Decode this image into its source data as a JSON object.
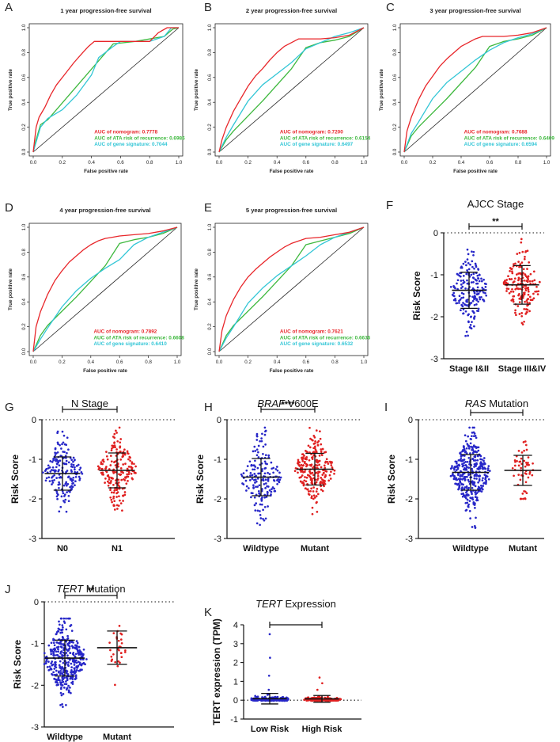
{
  "figure": {
    "colors": {
      "nomogram": "#e8262a",
      "ata": "#3db83d",
      "gene": "#33c6d6",
      "diagonal": "#222222",
      "low_group": "#2727c8",
      "high_group": "#e02020",
      "text": "#222222"
    }
  },
  "chart_data": [
    {
      "panel": "A",
      "type": "line",
      "title": "1 year progression-free survival",
      "xlabel": "False positive rate",
      "ylabel": "True positive rate",
      "xlim": [
        0,
        1
      ],
      "ylim": [
        0,
        1
      ],
      "ticks": [
        "0.0",
        "0.2",
        "0.4",
        "0.6",
        "0.8",
        "1.0"
      ],
      "series": [
        {
          "name": "AUC of nomogram: 0.7778",
          "color_key": "nomogram",
          "x": [
            0,
            0.02,
            0.04,
            0.08,
            0.12,
            0.16,
            0.22,
            0.28,
            0.34,
            0.38,
            0.42,
            0.5,
            0.6,
            0.7,
            0.8,
            0.86,
            0.92,
            1.0
          ],
          "y": [
            0,
            0.2,
            0.28,
            0.36,
            0.46,
            0.54,
            0.63,
            0.72,
            0.8,
            0.85,
            0.89,
            0.89,
            0.89,
            0.89,
            0.89,
            0.96,
            1.0,
            1.0
          ]
        },
        {
          "name": "AUC of ATA risk of recurrence: 0.6986",
          "color_key": "ata",
          "x": [
            0,
            0.02,
            0.05,
            0.1,
            0.55,
            0.7,
            0.9,
            0.96,
            1.0
          ],
          "y": [
            0,
            0.1,
            0.22,
            0.26,
            0.87,
            0.89,
            0.93,
            0.99,
            1.0
          ]
        },
        {
          "name": "AUC of gene signature: 0.7044",
          "color_key": "gene",
          "x": [
            0,
            0.05,
            0.1,
            0.2,
            0.3,
            0.4,
            0.45,
            0.55,
            0.6,
            0.7,
            0.8,
            0.9,
            0.95,
            1.0
          ],
          "y": [
            0,
            0.2,
            0.27,
            0.34,
            0.46,
            0.62,
            0.76,
            0.85,
            0.89,
            0.89,
            0.89,
            0.93,
            1.0,
            1.0
          ]
        }
      ]
    },
    {
      "panel": "B",
      "type": "line",
      "title": "2 year progression-free survival",
      "xlabel": "False positive rate",
      "ylabel": "True positive rate",
      "xlim": [
        0,
        1
      ],
      "ylim": [
        0,
        1
      ],
      "ticks": [
        "0.0",
        "0.2",
        "0.4",
        "0.6",
        "0.8",
        "1.0"
      ],
      "series": [
        {
          "name": "AUC of nomogram: 0.7200",
          "color_key": "nomogram",
          "x": [
            0,
            0.02,
            0.05,
            0.1,
            0.15,
            0.2,
            0.25,
            0.3,
            0.35,
            0.4,
            0.45,
            0.5,
            0.55,
            0.6,
            0.7,
            0.8,
            0.9,
            1.0
          ],
          "y": [
            0,
            0.1,
            0.2,
            0.33,
            0.43,
            0.53,
            0.61,
            0.67,
            0.74,
            0.8,
            0.85,
            0.88,
            0.91,
            0.91,
            0.91,
            0.92,
            0.94,
            1.0
          ]
        },
        {
          "name": "AUC of ATA risk of recurrence: 0.6154",
          "color_key": "ata",
          "x": [
            0,
            0.05,
            0.1,
            0.3,
            0.5,
            0.6,
            0.7,
            0.8,
            0.9,
            1.0
          ],
          "y": [
            0,
            0.1,
            0.17,
            0.41,
            0.67,
            0.84,
            0.88,
            0.9,
            0.93,
            1.0
          ]
        },
        {
          "name": "AUC of gene signature: 0.6497",
          "color_key": "gene",
          "x": [
            0,
            0.05,
            0.1,
            0.2,
            0.3,
            0.4,
            0.5,
            0.6,
            0.7,
            0.8,
            0.9,
            1.0
          ],
          "y": [
            0,
            0.12,
            0.22,
            0.41,
            0.54,
            0.63,
            0.72,
            0.83,
            0.88,
            0.93,
            0.96,
            1.0
          ]
        }
      ]
    },
    {
      "panel": "C",
      "type": "line",
      "title": "3 year progression-free survival",
      "xlabel": "False positive rate",
      "ylabel": "True positive rate",
      "xlim": [
        0,
        1
      ],
      "ylim": [
        0,
        1
      ],
      "ticks": [
        "0.0",
        "0.2",
        "0.4",
        "0.6",
        "0.8",
        "1.0"
      ],
      "series": [
        {
          "name": "AUC of nomogram: 0.7688",
          "color_key": "nomogram",
          "x": [
            0,
            0.02,
            0.05,
            0.1,
            0.15,
            0.2,
            0.25,
            0.3,
            0.35,
            0.4,
            0.45,
            0.5,
            0.55,
            0.6,
            0.7,
            0.8,
            0.9,
            1.0
          ],
          "y": [
            0,
            0.17,
            0.28,
            0.42,
            0.53,
            0.61,
            0.69,
            0.75,
            0.8,
            0.85,
            0.88,
            0.91,
            0.93,
            0.93,
            0.93,
            0.94,
            0.96,
            1.0
          ]
        },
        {
          "name": "AUC of ATA risk of recurrence: 0.6409",
          "color_key": "ata",
          "x": [
            0,
            0.05,
            0.1,
            0.3,
            0.5,
            0.6,
            0.7,
            0.8,
            0.9,
            1.0
          ],
          "y": [
            0,
            0.13,
            0.2,
            0.43,
            0.68,
            0.85,
            0.89,
            0.91,
            0.94,
            1.0
          ]
        },
        {
          "name": "AUC of gene signature: 0.6594",
          "color_key": "gene",
          "x": [
            0,
            0.05,
            0.1,
            0.2,
            0.3,
            0.4,
            0.5,
            0.6,
            0.7,
            0.8,
            0.9,
            1.0
          ],
          "y": [
            0,
            0.15,
            0.24,
            0.43,
            0.56,
            0.65,
            0.74,
            0.82,
            0.88,
            0.92,
            0.95,
            1.0
          ]
        }
      ]
    },
    {
      "panel": "D",
      "type": "line",
      "title": "4 year progression-free survival",
      "xlabel": "False positive rate",
      "ylabel": "True positive rate",
      "xlim": [
        0,
        1
      ],
      "ylim": [
        0,
        1
      ],
      "ticks": [
        "0.0",
        "0.2",
        "0.4",
        "0.6",
        "0.8",
        "1.0"
      ],
      "series": [
        {
          "name": "AUC of nomogram: 0.7892",
          "color_key": "nomogram",
          "x": [
            0,
            0.02,
            0.05,
            0.1,
            0.15,
            0.2,
            0.25,
            0.3,
            0.35,
            0.4,
            0.45,
            0.5,
            0.55,
            0.6,
            0.7,
            0.8,
            0.9,
            1.0
          ],
          "y": [
            0,
            0.2,
            0.32,
            0.46,
            0.57,
            0.65,
            0.72,
            0.77,
            0.82,
            0.86,
            0.89,
            0.91,
            0.92,
            0.93,
            0.94,
            0.95,
            0.97,
            1.0
          ]
        },
        {
          "name": "AUC of ATA risk of recurrence: 0.6608",
          "color_key": "ata",
          "x": [
            0,
            0.05,
            0.1,
            0.3,
            0.5,
            0.6,
            0.7,
            0.8,
            0.9,
            1.0
          ],
          "y": [
            0,
            0.13,
            0.21,
            0.44,
            0.69,
            0.87,
            0.9,
            0.92,
            0.95,
            1.0
          ]
        },
        {
          "name": "AUC of gene signature: 0.6410",
          "color_key": "gene",
          "x": [
            0,
            0.05,
            0.1,
            0.2,
            0.3,
            0.4,
            0.5,
            0.6,
            0.7,
            0.8,
            0.9,
            1.0
          ],
          "y": [
            0,
            0.1,
            0.19,
            0.36,
            0.49,
            0.59,
            0.67,
            0.74,
            0.86,
            0.92,
            0.96,
            1.0
          ]
        }
      ]
    },
    {
      "panel": "E",
      "type": "line",
      "title": "5 year progression-free survival",
      "xlabel": "False positive rate",
      "ylabel": "True positive rate",
      "xlim": [
        0,
        1
      ],
      "ylim": [
        0,
        1
      ],
      "ticks": [
        "0.0",
        "0.2",
        "0.4",
        "0.6",
        "0.8",
        "1.0"
      ],
      "series": [
        {
          "name": "AUC of nomogram: 0.7621",
          "color_key": "nomogram",
          "x": [
            0,
            0.02,
            0.05,
            0.1,
            0.15,
            0.2,
            0.25,
            0.3,
            0.35,
            0.4,
            0.45,
            0.5,
            0.55,
            0.6,
            0.7,
            0.8,
            0.9,
            1.0
          ],
          "y": [
            0,
            0.17,
            0.29,
            0.42,
            0.52,
            0.6,
            0.66,
            0.71,
            0.76,
            0.8,
            0.84,
            0.87,
            0.89,
            0.91,
            0.92,
            0.94,
            0.96,
            1.0
          ]
        },
        {
          "name": "AUC of ATA risk of recurrence: 0.6636",
          "color_key": "ata",
          "x": [
            0,
            0.05,
            0.1,
            0.3,
            0.5,
            0.6,
            0.7,
            0.8,
            0.9,
            1.0
          ],
          "y": [
            0,
            0.13,
            0.21,
            0.44,
            0.69,
            0.86,
            0.89,
            0.92,
            0.95,
            1.0
          ]
        },
        {
          "name": "AUC of gene signature: 0.6532",
          "color_key": "gene",
          "x": [
            0,
            0.05,
            0.1,
            0.2,
            0.3,
            0.4,
            0.5,
            0.6,
            0.7,
            0.8,
            0.9,
            1.0
          ],
          "y": [
            0,
            0.11,
            0.2,
            0.39,
            0.51,
            0.61,
            0.69,
            0.77,
            0.86,
            0.92,
            0.96,
            1.0
          ]
        }
      ]
    },
    {
      "panel": "F",
      "type": "scatter",
      "title": "AJCC Stage",
      "ylabel": "Risk Score",
      "ylim": [
        -3,
        0
      ],
      "yticks": [
        "0",
        "-1",
        "-2",
        "-3"
      ],
      "significance": "**",
      "groups": [
        {
          "label": "Stage I&II",
          "n": 190,
          "mean": -1.37,
          "sd": 0.43,
          "min": -2.7,
          "max": -0.4,
          "color_key": "low_group"
        },
        {
          "label": "Stage III&IV",
          "n": 170,
          "mean": -1.24,
          "sd": 0.46,
          "min": -2.45,
          "max": -0.15,
          "color_key": "high_group"
        }
      ]
    },
    {
      "panel": "G",
      "type": "scatter",
      "title": "N Stage",
      "ylabel": "Risk Score",
      "ylim": [
        -3,
        0
      ],
      "yticks": [
        "0",
        "-1",
        "-2",
        "-3"
      ],
      "significance": "",
      "groups": [
        {
          "label": "N0",
          "n": 180,
          "mean": -1.36,
          "sd": 0.42,
          "min": -2.75,
          "max": -0.3,
          "color_key": "low_group"
        },
        {
          "label": "N1",
          "n": 200,
          "mean": -1.28,
          "sd": 0.44,
          "min": -2.45,
          "max": -0.2,
          "color_key": "high_group"
        }
      ]
    },
    {
      "panel": "H",
      "type": "scatter",
      "title": "V600E",
      "title_italic": "BRAF",
      "ylabel": "Risk Score",
      "ylim": [
        -3,
        0
      ],
      "yticks": [
        "0",
        "-1",
        "-2",
        "-3"
      ],
      "significance": "****",
      "groups": [
        {
          "label": "Wildtype",
          "n": 170,
          "mean": -1.45,
          "sd": 0.47,
          "min": -2.75,
          "max": -0.2,
          "color_key": "low_group"
        },
        {
          "label": "Mutant",
          "n": 240,
          "mean": -1.25,
          "sd": 0.4,
          "min": -2.45,
          "max": -0.2,
          "color_key": "high_group"
        }
      ]
    },
    {
      "panel": "I",
      "type": "scatter",
      "title": "Mutation",
      "title_italic": "RAS",
      "ylabel": "Risk Score",
      "ylim": [
        -3,
        0
      ],
      "yticks": [
        "0",
        "-1",
        "-2",
        "-3"
      ],
      "significance": "",
      "groups": [
        {
          "label": "Wildtype",
          "n": 360,
          "mean": -1.33,
          "sd": 0.45,
          "min": -2.75,
          "max": -0.2,
          "color_key": "low_group"
        },
        {
          "label": "Mutant",
          "n": 55,
          "mean": -1.28,
          "sd": 0.38,
          "min": -2.0,
          "max": -0.55,
          "color_key": "high_group"
        }
      ]
    },
    {
      "panel": "J",
      "type": "scatter",
      "title": "Mutation",
      "title_italic": "TERT",
      "ylabel": "Risk Score",
      "ylim": [
        -3,
        0
      ],
      "yticks": [
        "0",
        "-1",
        "-2",
        "-3"
      ],
      "significance": "**",
      "groups": [
        {
          "label": "Wildtype",
          "n": 380,
          "mean": -1.35,
          "sd": 0.43,
          "min": -2.75,
          "max": -0.4,
          "color_key": "low_group"
        },
        {
          "label": "Mutant",
          "n": 30,
          "mean": -1.1,
          "sd": 0.4,
          "min": -2.05,
          "max": -0.3,
          "color_key": "high_group"
        }
      ]
    },
    {
      "panel": "K",
      "type": "scatter",
      "title": "Expression",
      "title_italic": "TERT",
      "ylabel": "TERT expression (TPM)",
      "ylim": [
        -1,
        4
      ],
      "yticks": [
        "4",
        "3",
        "2",
        "1",
        "0",
        "-1"
      ],
      "significance": "",
      "groups": [
        {
          "label": "Low Risk",
          "n": 210,
          "mean": 0.08,
          "sd": 0.28,
          "min": -0.05,
          "max": 3.5,
          "color_key": "low_group"
        },
        {
          "label": "High Risk",
          "n": 210,
          "mean": 0.07,
          "sd": 0.18,
          "min": -0.05,
          "max": 1.2,
          "color_key": "high_group"
        }
      ]
    }
  ]
}
